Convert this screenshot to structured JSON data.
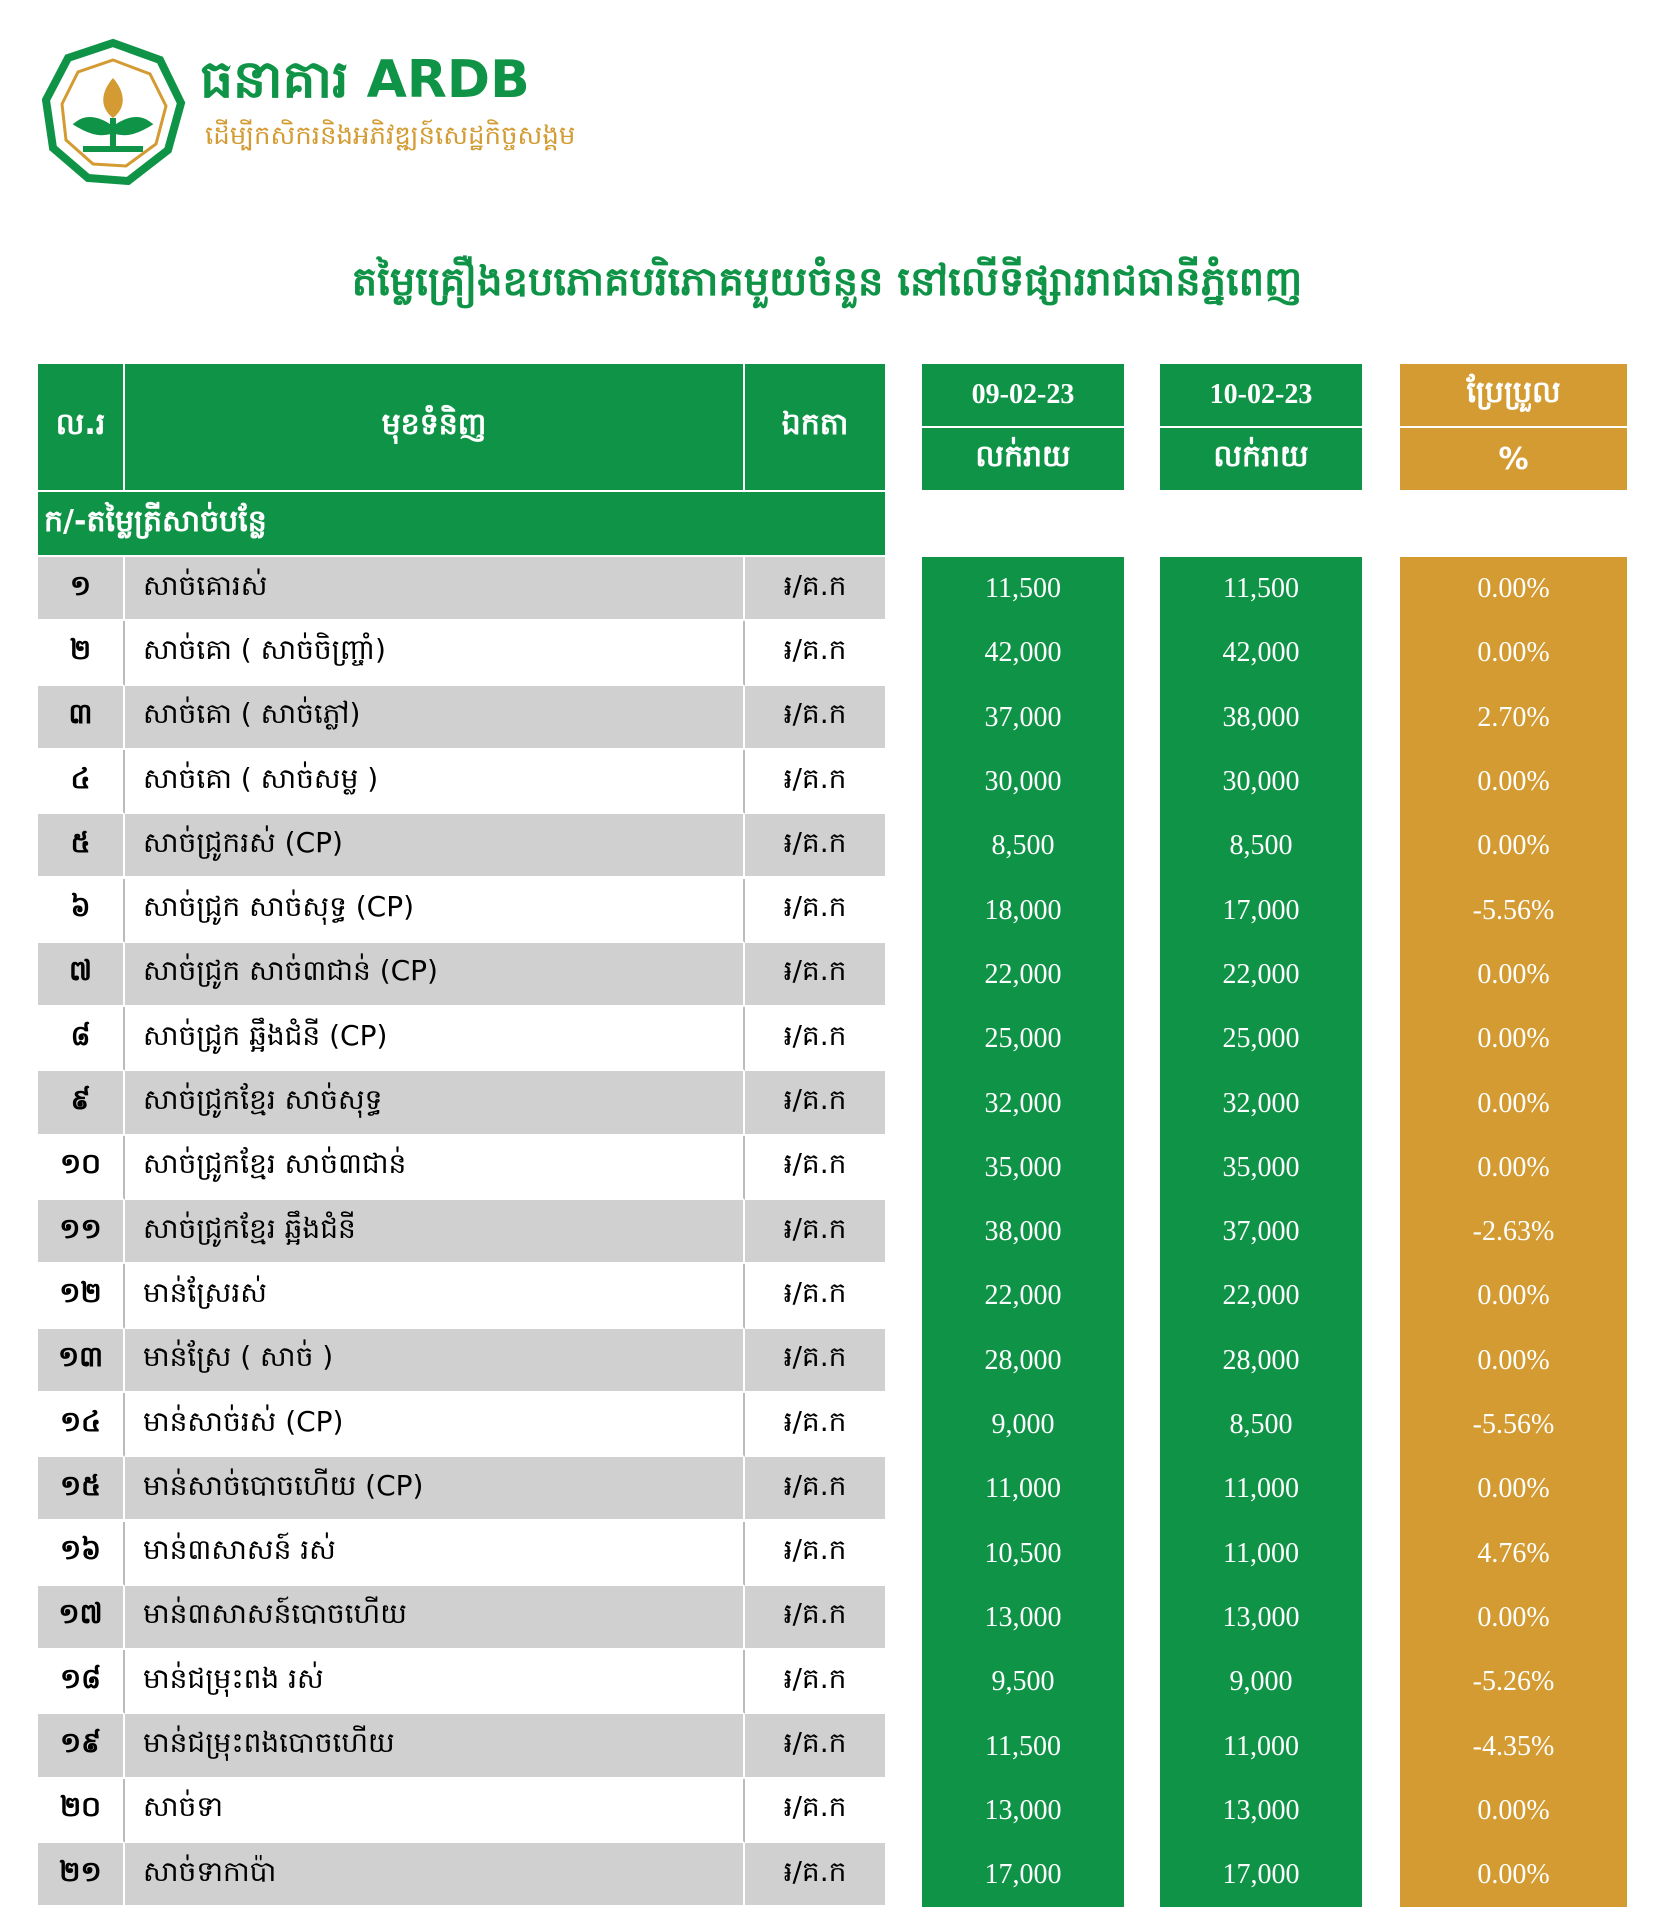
{
  "header": {
    "bank_name": "ធនាគារ ARDB",
    "tagline": "ដើម្បីកសិករនិងអភិវឌ្ឍន៍សេដ្ឋកិច្ចសង្គម"
  },
  "title": "តម្លៃគ្រឿងឧបភោគបរិភោគមួយចំនួន នៅលើទីផ្សាររាជធានីភ្នំពេញ",
  "table": {
    "columns": [
      "ល.រ",
      "មុខទំនិញ",
      "ឯកតា"
    ],
    "date_columns": [
      {
        "date": "09-02-23",
        "sub": "លក់រាយ"
      },
      {
        "date": "10-02-23",
        "sub": "លក់រាយ"
      }
    ],
    "change_column": {
      "label": "ប្រែប្រួល",
      "sub": "%"
    },
    "section": "ក/-តម្លៃត្រីសាច់បន្លែ",
    "rows": [
      [
        "១",
        "សាច់គោរស់",
        "៛/គ.ក",
        "11,500",
        "11,500",
        "0.00%"
      ],
      [
        "២",
        "សាច់គោ ( សាច់ចិញ្ច្រាំ)",
        "៛/គ.ក",
        "42,000",
        "42,000",
        "0.00%"
      ],
      [
        "៣",
        "សាច់គោ ( សាច់ភ្លៅ)",
        "៛/គ.ក",
        "37,000",
        "38,000",
        "2.70%"
      ],
      [
        "៤",
        "សាច់គោ ( សាច់សម្ល )",
        "៛/គ.ក",
        "30,000",
        "30,000",
        "0.00%"
      ],
      [
        "៥",
        "សាច់ជ្រូករស់ (CP)",
        "៛/គ.ក",
        "8,500",
        "8,500",
        "0.00%"
      ],
      [
        "៦",
        "សាច់ជ្រូក សាច់សុទ្ធ (CP)",
        "៛/គ.ក",
        "18,000",
        "17,000",
        "-5.56%"
      ],
      [
        "៧",
        "សាច់ជ្រូក សាច់៣ជាន់ (CP)",
        "៛/គ.ក",
        "22,000",
        "22,000",
        "0.00%"
      ],
      [
        "៨",
        "សាច់ជ្រូក ឆ្អឹងជំនី (CP)",
        "៛/គ.ក",
        "25,000",
        "25,000",
        "0.00%"
      ],
      [
        "៩",
        "សាច់ជ្រូកខ្មែរ សាច់សុទ្ធ",
        "៛/គ.ក",
        "32,000",
        "32,000",
        "0.00%"
      ],
      [
        "១០",
        "សាច់ជ្រូកខ្មែរ សាច់៣ជាន់",
        "៛/គ.ក",
        "35,000",
        "35,000",
        "0.00%"
      ],
      [
        "១១",
        "សាច់ជ្រូកខ្មែរ ឆ្អឹងជំនី",
        "៛/គ.ក",
        "38,000",
        "37,000",
        "-2.63%"
      ],
      [
        "១២",
        "មាន់ស្រែរស់",
        "៛/គ.ក",
        "22,000",
        "22,000",
        "0.00%"
      ],
      [
        "១៣",
        "មាន់ស្រែ ( សាច់ )",
        "៛/គ.ក",
        "28,000",
        "28,000",
        "0.00%"
      ],
      [
        "១៤",
        "មាន់សាច់រស់ (CP)",
        "៛/គ.ក",
        "9,000",
        "8,500",
        "-5.56%"
      ],
      [
        "១៥",
        "មាន់សាច់បោចហើយ (CP)",
        "៛/គ.ក",
        "11,000",
        "11,000",
        "0.00%"
      ],
      [
        "១៦",
        "មាន់៣សាសន៍ រស់",
        "៛/គ.ក",
        "10,500",
        "11,000",
        "4.76%"
      ],
      [
        "១៧",
        "មាន់៣សាសន៍បោចហើយ",
        "៛/គ.ក",
        "13,000",
        "13,000",
        "0.00%"
      ],
      [
        "១៨",
        "មាន់ជម្រុះពង រស់",
        "៛/គ.ក",
        "9,500",
        "9,000",
        "-5.26%"
      ],
      [
        "១៩",
        "មាន់ជម្រុះពងបោចហើយ",
        "៛/គ.ក",
        "11,500",
        "11,000",
        "-4.35%"
      ],
      [
        "២០",
        "សាច់ទា",
        "៛/គ.ក",
        "13,000",
        "13,000",
        "0.00%"
      ],
      [
        "២១",
        "សាច់ទាកាប៉ា",
        "៛/គ.ក",
        "17,000",
        "17,000",
        "0.00%"
      ]
    ]
  }
}
